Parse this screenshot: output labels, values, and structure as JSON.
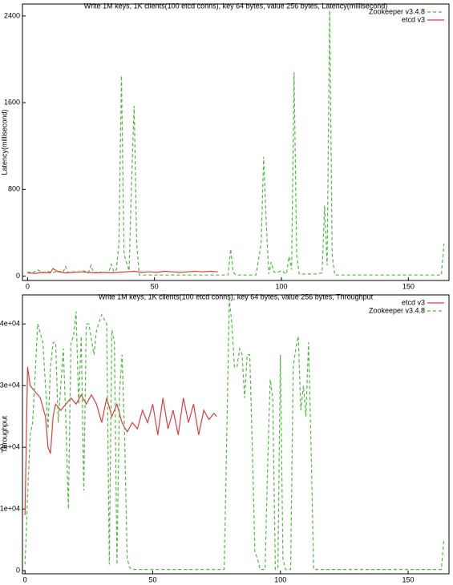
{
  "chart_data": [
    {
      "type": "line",
      "title": "Write 1M keys, 1K clients(100 etcd conns), key 64 bytes, value 256 bytes, Latency(millisecond)",
      "y_label": "Latency(millisecond)",
      "xlim": [
        -2,
        166
      ],
      "xticks": [
        0,
        50,
        100,
        150
      ],
      "ylim": [
        -40,
        2510
      ],
      "yticks": [
        0,
        800,
        1600,
        2400
      ],
      "legend": "top-right",
      "grid": false,
      "series": [
        {
          "name": "Zookeeper v3.4.8",
          "color": "#4cbb3c",
          "line_style": "dashed",
          "x": [
            0,
            2,
            4,
            6,
            8,
            10,
            12,
            14,
            15,
            16,
            18,
            20,
            22,
            24,
            25,
            26,
            28,
            30,
            32,
            33,
            34,
            35,
            36,
            37,
            38,
            40,
            41,
            42,
            43,
            44,
            78,
            79,
            80,
            81,
            82,
            90,
            92,
            93,
            94,
            95,
            96,
            97,
            98,
            100,
            102,
            103,
            104,
            105,
            106,
            107,
            110,
            114,
            116,
            117,
            118,
            119,
            120,
            121,
            122,
            140,
            160,
            163,
            164
          ],
          "values": [
            40,
            30,
            60,
            30,
            45,
            30,
            50,
            35,
            90,
            30,
            40,
            35,
            50,
            30,
            100,
            30,
            40,
            30,
            35,
            110,
            40,
            60,
            300,
            1850,
            200,
            50,
            900,
            1570,
            300,
            10,
            10,
            10,
            250,
            40,
            10,
            10,
            300,
            1100,
            500,
            20,
            130,
            40,
            30,
            50,
            20,
            180,
            60,
            1880,
            200,
            20,
            20,
            20,
            30,
            650,
            100,
            2450,
            200,
            10,
            10,
            10,
            10,
            10,
            300
          ]
        },
        {
          "name": "etcd v3",
          "color": "#e03c3c",
          "line_style": "solid",
          "x": [
            0,
            3,
            6,
            9,
            10,
            12,
            15,
            18,
            21,
            24,
            27,
            30,
            33,
            36,
            39,
            42,
            45,
            48,
            51,
            54,
            57,
            60,
            63,
            66,
            69,
            72,
            75
          ],
          "values": [
            30,
            25,
            35,
            30,
            70,
            40,
            30,
            35,
            40,
            35,
            30,
            35,
            30,
            35,
            40,
            45,
            35,
            40,
            35,
            45,
            40,
            35,
            40,
            45,
            40,
            45,
            40
          ]
        }
      ]
    },
    {
      "type": "line",
      "title": "Write 1M keys, 1K clients(100 etcd conns), key 64 bytes, value 256 bytes, Throughput",
      "y_label": "Throughput",
      "xlim": [
        -1,
        166
      ],
      "xticks": [
        0,
        50,
        100,
        150
      ],
      "ylim": [
        -500,
        44700
      ],
      "yticks": [
        0,
        {
          "value": 10000,
          "label": "1e+04"
        },
        {
          "value": 20000,
          "label": "2e+04"
        },
        {
          "value": 30000,
          "label": "3e+04"
        },
        {
          "value": 40000,
          "label": "4e+04"
        }
      ],
      "legend": "top-right",
      "grid": false,
      "series": [
        {
          "name": "etcd v3",
          "color": "#e03c3c",
          "line_style": "solid",
          "x": [
            0,
            1,
            2,
            4,
            6,
            8,
            9,
            10,
            11,
            12,
            14,
            16,
            18,
            20,
            22,
            24,
            26,
            28,
            30,
            32,
            34,
            36,
            38,
            40,
            42,
            44,
            46,
            48,
            50,
            52,
            54,
            56,
            58,
            60,
            62,
            64,
            66,
            68,
            70,
            72,
            74,
            75
          ],
          "values": [
            9000,
            33000,
            30000,
            29000,
            28000,
            25000,
            20000,
            19000,
            25000,
            27000,
            26000,
            27000,
            28000,
            27000,
            28500,
            27000,
            28500,
            27000,
            24000,
            28000,
            25000,
            27000,
            24000,
            22500,
            24000,
            23000,
            26000,
            24000,
            27000,
            22000,
            28000,
            23000,
            26000,
            22000,
            28000,
            24000,
            27000,
            22000,
            26000,
            24500,
            25500,
            25000
          ]
        },
        {
          "name": "Zookeeper v3.4.8",
          "color": "#4cbb3c",
          "line_style": "dashed",
          "x": [
            0,
            1,
            2,
            3,
            5,
            7,
            9,
            10,
            11,
            12,
            13,
            15,
            16,
            17,
            18,
            19,
            20,
            21,
            22,
            23,
            24,
            25,
            27,
            28,
            30,
            32,
            33,
            34,
            35,
            36,
            37,
            38,
            39,
            40,
            41,
            42,
            60,
            78,
            80,
            81,
            82,
            83,
            84,
            85,
            86,
            87,
            88,
            89,
            90,
            91,
            92,
            94,
            95,
            96,
            97,
            98,
            99,
            100,
            101,
            102,
            104,
            105,
            106,
            107,
            108,
            109,
            110,
            111,
            112,
            113,
            114,
            130,
            163,
            164
          ],
          "values": [
            1000,
            12000,
            22000,
            24000,
            40000,
            37000,
            23000,
            33000,
            37000,
            37000,
            24000,
            36000,
            24000,
            10000,
            37000,
            38000,
            42000,
            27000,
            38000,
            13000,
            40000,
            40000,
            35000,
            39000,
            41500,
            40000,
            1000,
            39000,
            37000,
            1000,
            29000,
            35000,
            22000,
            2000,
            500,
            200,
            200,
            200,
            44000,
            40000,
            33000,
            33000,
            36000,
            35000,
            28000,
            35000,
            35000,
            20000,
            3000,
            2000,
            200,
            200,
            17000,
            31000,
            28000,
            200,
            500,
            35000,
            2000,
            200,
            200,
            33000,
            36000,
            38000,
            26000,
            30000,
            25000,
            37000,
            20000,
            200,
            200,
            200,
            200,
            5000
          ]
        }
      ]
    }
  ]
}
